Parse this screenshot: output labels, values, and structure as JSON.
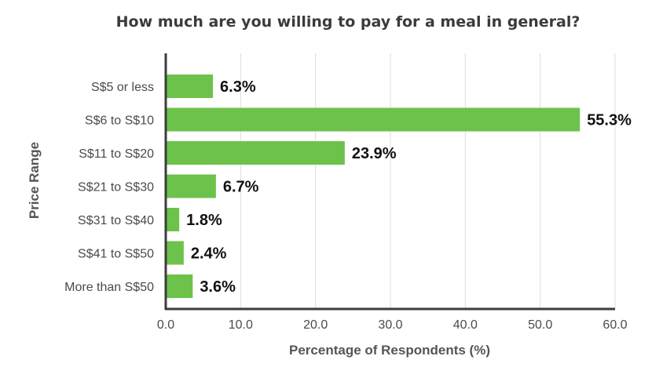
{
  "chart_data": {
    "type": "bar",
    "orientation": "horizontal",
    "title": "How much are you willing to pay for a meal in general?",
    "xlabel": "Percentage of Respondents (%)",
    "ylabel": "Price Range",
    "categories": [
      "S$5 or less",
      "S$6 to S$10",
      "S$11 to S$20",
      "S$21 to S$30",
      "S$31 to S$40",
      "S$41 to S$50",
      "More than S$50"
    ],
    "values": [
      6.3,
      55.3,
      23.9,
      6.7,
      1.8,
      2.4,
      3.6
    ],
    "data_labels": [
      "6.3%",
      "55.3%",
      "23.9%",
      "6.7%",
      "1.8%",
      "2.4%",
      "3.6%"
    ],
    "xlim": [
      0,
      60
    ],
    "xticks": [
      "0.0",
      "10.0",
      "20.0",
      "30.0",
      "40.0",
      "50.0",
      "60.0"
    ],
    "grid": "vertical",
    "bar_color": "#6cc24a",
    "axis_color": "#3c3c3c",
    "grid_color": "#dcdcdc"
  }
}
